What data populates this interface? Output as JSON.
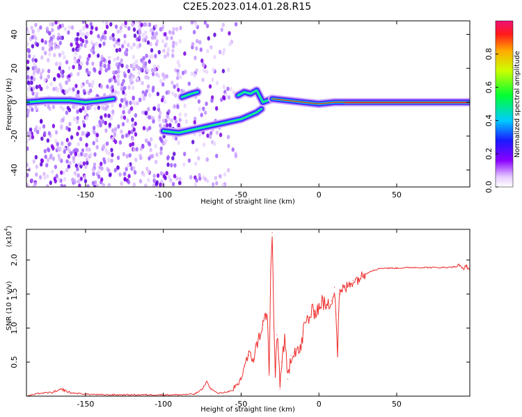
{
  "figure": {
    "title": "C2E5.2023.014.01.28.R15",
    "colors": {
      "trace": "#ee2b2b",
      "frame": "#000000",
      "background": "#ffffff"
    }
  },
  "chart_data": [
    {
      "type": "heatmap",
      "title": "",
      "xlabel": "Height of straight line (km)",
      "ylabel": "Frequency (Hz)",
      "xlim": [
        -188,
        97
      ],
      "ylim": [
        -50,
        48
      ],
      "x_ticks": [
        -150,
        -100,
        -50,
        0,
        50
      ],
      "y_ticks": [
        -40,
        -20,
        0,
        20,
        40
      ],
      "x_tick_labels": [
        "-150",
        "-100",
        "-50",
        "0",
        "50"
      ],
      "y_tick_labels": [
        "-40",
        "-20",
        "0",
        "20",
        "40"
      ],
      "colorbar": {
        "label": "Normalized spectral amplitude",
        "range": [
          0,
          1
        ],
        "ticks": [
          0.0,
          0.2,
          0.4,
          0.6,
          0.8
        ],
        "tick_labels": [
          "0.0",
          "0.2",
          "0.4",
          "0.6",
          "0.8"
        ],
        "colormap": [
          "#f8f0ff",
          "#d6b8ff",
          "#7a00e6",
          "#1a1aff",
          "#00ccff",
          "#00ff66",
          "#ccff00",
          "#ffcc00",
          "#ff3300",
          "#ee1166"
        ]
      },
      "ridges": [
        {
          "name": "",
          "x": [
            -188,
            -175,
            -160,
            -150,
            -140,
            -132
          ],
          "y": [
            0,
            1,
            1,
            0,
            1,
            2
          ],
          "amplitude": 0.45
        },
        {
          "name": "",
          "x": [
            -88,
            -82,
            -78
          ],
          "y": [
            3,
            5,
            6
          ],
          "amplitude": 0.4
        },
        {
          "name": "",
          "x": [
            -100,
            -90,
            -80,
            -70,
            -60,
            -50,
            -45,
            -40,
            -37
          ],
          "y": [
            -17,
            -18,
            -16,
            -14,
            -12,
            -10,
            -8,
            -6,
            -4
          ],
          "amplitude": 0.45
        },
        {
          "name": "",
          "x": [
            -52,
            -48,
            -44,
            -40,
            -36,
            -33,
            -30
          ],
          "y": [
            4,
            6,
            5,
            7,
            0,
            1,
            2
          ],
          "amplitude": 0.5
        },
        {
          "name": "",
          "x": [
            -30,
            -20,
            -10,
            0,
            10,
            15,
            20,
            40,
            60,
            80,
            97
          ],
          "y": [
            2,
            1,
            0,
            -1,
            0,
            0,
            0,
            0,
            0,
            0,
            0
          ],
          "amplitude": 0.95
        }
      ]
    },
    {
      "type": "line",
      "title": "",
      "xlabel": "Height of straight line (km)",
      "ylabel": "SNR (10 * v/v)",
      "y_multiplier": "(x10",
      "y_multiplier_exp": "4",
      "xlim": [
        -188,
        97
      ],
      "ylim": [
        0,
        2.45
      ],
      "x_ticks": [
        -150,
        -100,
        -50,
        0,
        50
      ],
      "y_ticks": [
        0.5,
        1.0,
        1.5,
        2.0
      ],
      "x_tick_labels": [
        "-150",
        "-100",
        "-50",
        "0",
        "50"
      ],
      "y_tick_labels": [
        "0.5",
        "1.0",
        "1.5",
        "2.0"
      ],
      "series": [
        {
          "name": "",
          "x": [
            -188,
            -180,
            -170,
            -165,
            -160,
            -150,
            -140,
            -120,
            -100,
            -90,
            -80,
            -75,
            -72,
            -70,
            -65,
            -55,
            -50,
            -48,
            -45,
            -42,
            -40,
            -38,
            -36,
            -34,
            -33,
            -32,
            -31,
            -30,
            -29,
            -28,
            -27,
            -26,
            -25,
            -24,
            -22,
            -20,
            -18,
            -15,
            -12,
            -10,
            -8,
            -5,
            -3,
            0,
            2,
            5,
            8,
            10,
            11,
            12,
            13,
            14,
            15,
            18,
            20,
            22,
            25,
            30,
            35,
            40,
            50,
            60,
            70,
            80,
            88,
            90,
            92,
            95,
            97
          ],
          "y": [
            0.0,
            0.04,
            0.06,
            0.1,
            0.05,
            0.03,
            0.02,
            0.02,
            0.02,
            0.02,
            0.03,
            0.1,
            0.22,
            0.12,
            0.04,
            0.08,
            0.25,
            0.45,
            0.6,
            0.55,
            0.75,
            0.9,
            1.05,
            1.2,
            1.1,
            0.3,
            1.8,
            2.4,
            1.0,
            0.3,
            0.9,
            0.7,
            0.1,
            0.5,
            0.8,
            0.25,
            0.6,
            0.7,
            0.65,
            0.95,
            1.1,
            1.2,
            1.25,
            1.3,
            1.4,
            1.3,
            1.4,
            1.6,
            1.2,
            0.6,
            1.5,
            1.5,
            1.55,
            1.6,
            1.65,
            1.7,
            1.72,
            1.8,
            1.85,
            1.88,
            1.88,
            1.89,
            1.89,
            1.89,
            1.9,
            1.92,
            1.88,
            1.9,
            1.85
          ]
        }
      ]
    }
  ]
}
